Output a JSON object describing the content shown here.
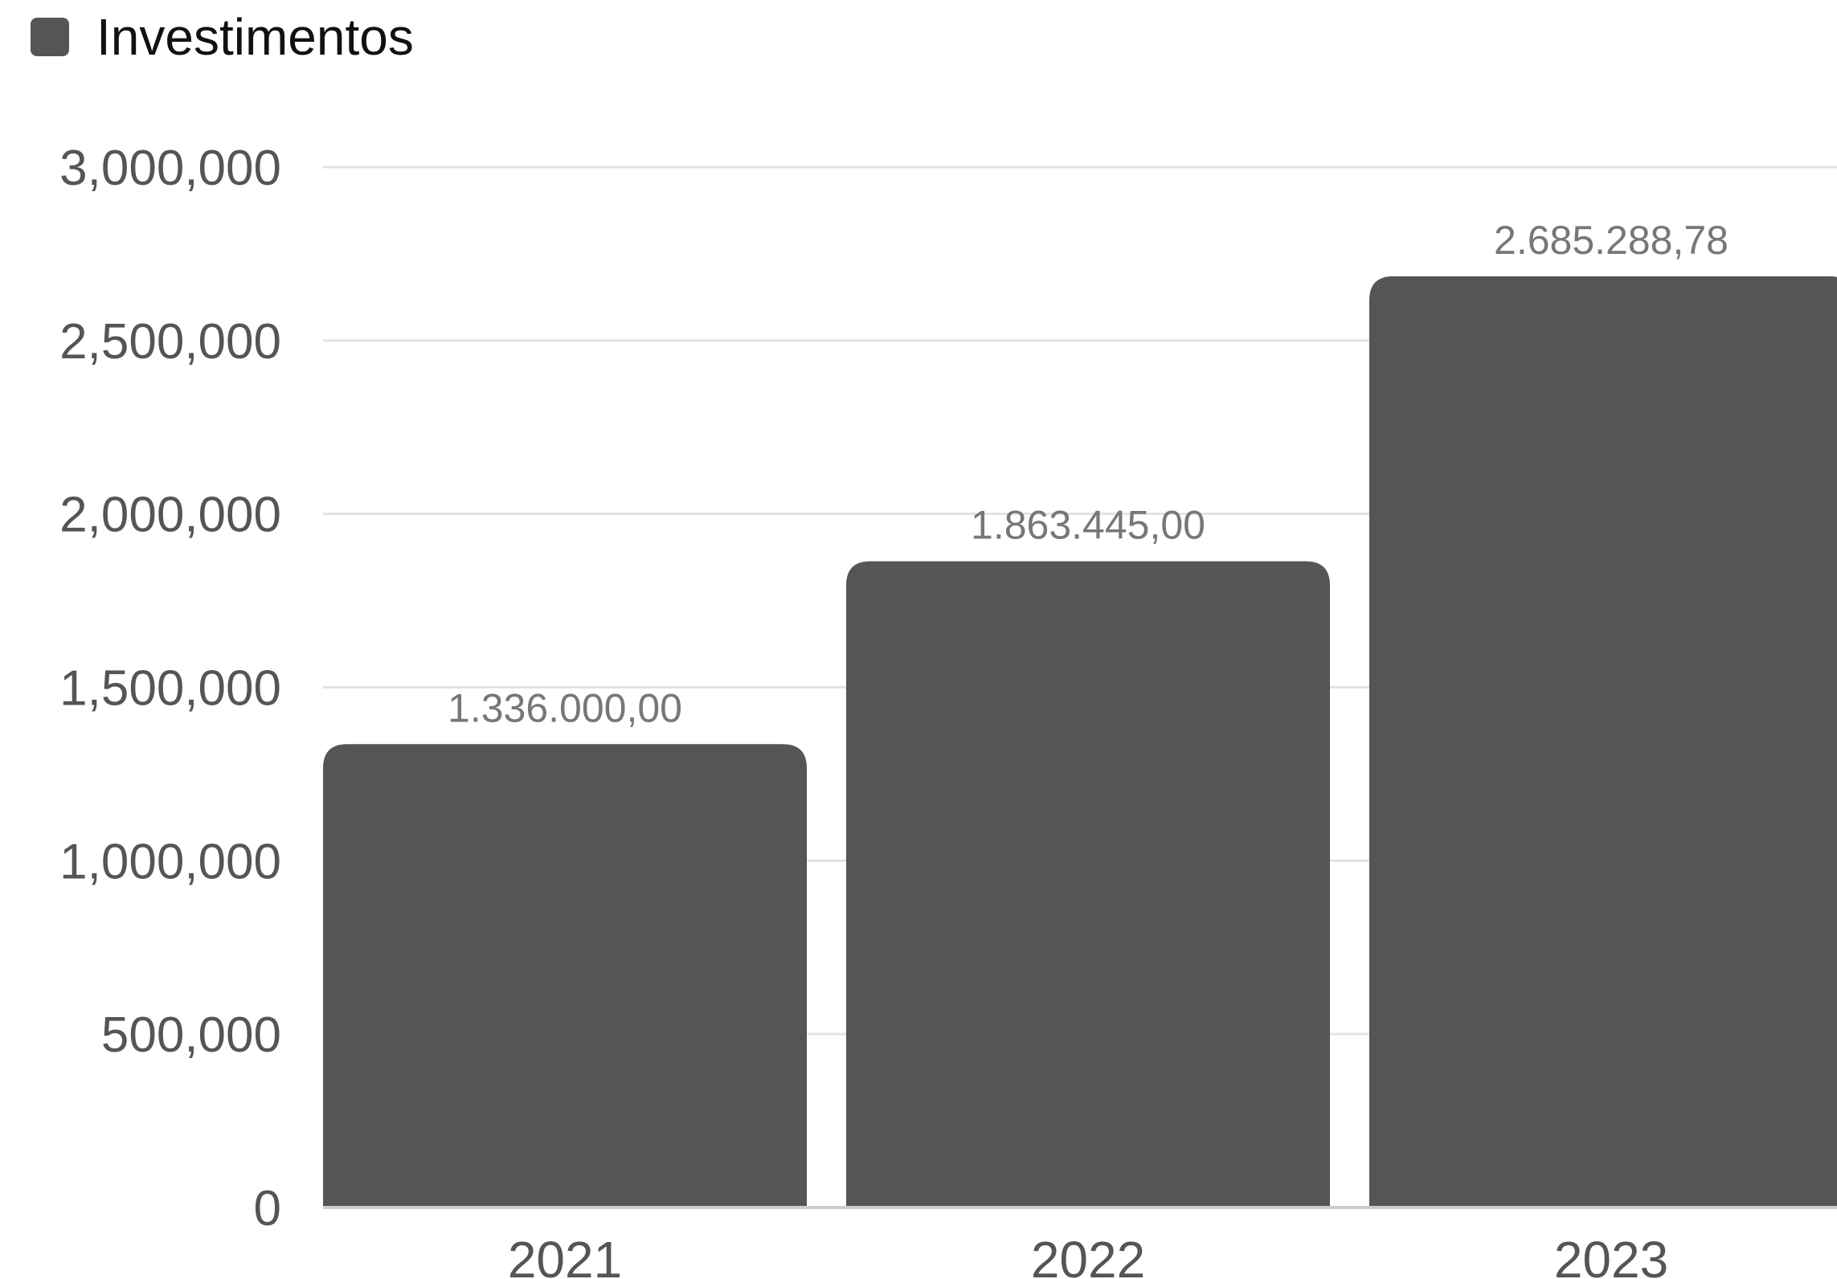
{
  "legend": {
    "label": "Investimentos",
    "color": "#555555"
  },
  "chart_data": {
    "type": "bar",
    "categories": [
      "2021",
      "2022",
      "2023"
    ],
    "series": [
      {
        "name": "Investimentos",
        "values": [
          1336000.0,
          1863445.0,
          2685288.78
        ],
        "labels": [
          "1.336.000,00",
          "1.863.445,00",
          "2.685.288,78"
        ]
      }
    ],
    "ylim": [
      0,
      3000000
    ],
    "yticks": [
      0,
      500000,
      1000000,
      1500000,
      2000000,
      2500000,
      3000000
    ],
    "ytick_labels": [
      "0",
      "500,000",
      "1,000,000",
      "1,500,000",
      "2,000,000",
      "2,500,000",
      "3,000,000"
    ],
    "grid": true,
    "legend_position": "top-left",
    "colors": {
      "bar": "#555555",
      "grid": "#e3e3e3",
      "axis": "#cccccc",
      "tick_text": "#555555",
      "value_text": "#777777"
    }
  }
}
